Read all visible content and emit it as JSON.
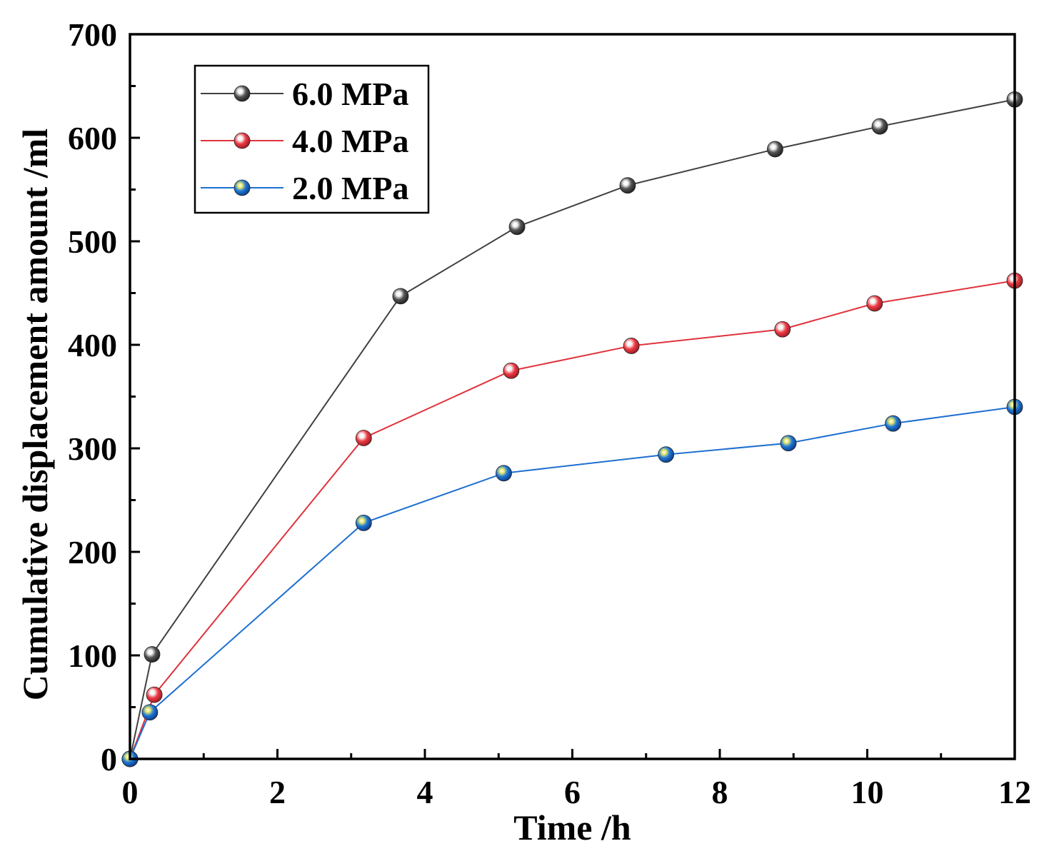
{
  "chart_data": {
    "type": "line",
    "title": "",
    "xlabel": "Time /h",
    "ylabel": "Cumulative displacement amount /ml",
    "xlim": [
      0,
      12
    ],
    "ylim": [
      0,
      700
    ],
    "x_ticks": [
      0,
      2,
      4,
      6,
      8,
      10,
      12
    ],
    "x_tick_labels": [
      "0",
      "2",
      "4",
      "6",
      "8",
      "10",
      "12"
    ],
    "y_ticks": [
      0,
      100,
      200,
      300,
      400,
      500,
      600,
      700
    ],
    "y_tick_labels": [
      "0",
      "100",
      "200",
      "300",
      "400",
      "500",
      "600",
      "700"
    ],
    "grid": false,
    "legend_position": "top-left",
    "series": [
      {
        "name": "6.0 MPa",
        "color": "#404040",
        "marker_color": "#555555",
        "x": [
          0,
          0.3,
          3.67,
          5.25,
          6.75,
          8.75,
          10.17,
          12
        ],
        "y": [
          0,
          101,
          447,
          514,
          554,
          589,
          611,
          637
        ]
      },
      {
        "name": "4.0 MPa",
        "color": "#e0323c",
        "marker_color": "#ee3b45",
        "x": [
          0,
          0.33,
          3.17,
          5.17,
          6.8,
          8.85,
          10.1,
          12
        ],
        "y": [
          0,
          62,
          310,
          375,
          399,
          415,
          440,
          462
        ]
      },
      {
        "name": "2.0 MPa",
        "color": "#1e6fd0",
        "marker_color": "#1f78d8",
        "x": [
          0,
          0.27,
          3.17,
          5.07,
          7.27,
          8.93,
          10.35,
          12
        ],
        "y": [
          0,
          45,
          228,
          276,
          294,
          305,
          324,
          340
        ]
      }
    ]
  }
}
